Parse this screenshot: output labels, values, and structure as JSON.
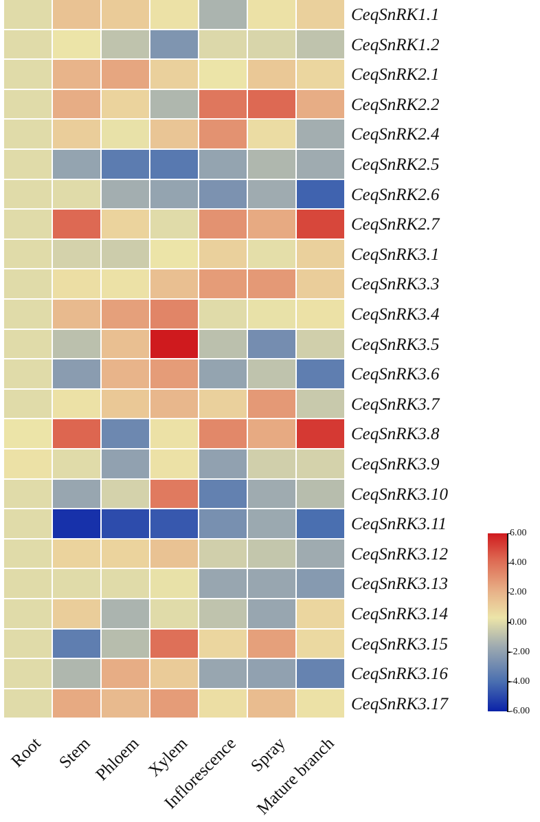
{
  "chart_data": {
    "type": "heatmap",
    "title": "",
    "xlabel": "",
    "ylabel": "",
    "columns": [
      "Root",
      "Stem",
      "Phloem",
      "Xylem",
      "Inflorescence",
      "Spray",
      "Mature branch"
    ],
    "rows": [
      "CeqSnRK1.1",
      "CeqSnRK1.2",
      "CeqSnRK2.1",
      "CeqSnRK2.2",
      "CeqSnRK2.4",
      "CeqSnRK2.5",
      "CeqSnRK2.6",
      "CeqSnRK2.7",
      "CeqSnRK3.1",
      "CeqSnRK3.3",
      "CeqSnRK3.4",
      "CeqSnRK3.5",
      "CeqSnRK3.6",
      "CeqSnRK3.7",
      "CeqSnRK3.8",
      "CeqSnRK3.9",
      "CeqSnRK3.10",
      "CeqSnRK3.11",
      "CeqSnRK3.12",
      "CeqSnRK3.13",
      "CeqSnRK3.14",
      "CeqSnRK3.15",
      "CeqSnRK3.16",
      "CeqSnRK3.17"
    ],
    "values": [
      [
        0,
        1.5,
        1.2,
        0.4,
        -1.3,
        0.4,
        1.0
      ],
      [
        0,
        0.3,
        -0.8,
        -2.5,
        -0.1,
        -0.2,
        -0.8
      ],
      [
        0,
        2.0,
        2.4,
        1.0,
        0.3,
        1.3,
        0.8
      ],
      [
        0,
        2.2,
        0.9,
        -1.2,
        3.8,
        4.2,
        2.2
      ],
      [
        0,
        1.1,
        0.2,
        1.4,
        3.0,
        0.6,
        -1.5
      ],
      [
        0,
        -1.9,
        -3.5,
        -3.6,
        -1.9,
        -1.2,
        -1.6
      ],
      [
        0,
        0.0,
        -1.5,
        -1.9,
        -2.6,
        -1.6,
        -4.3
      ],
      [
        0,
        4.2,
        0.9,
        0.0,
        3.0,
        2.3,
        5.0
      ],
      [
        0,
        -0.3,
        -0.5,
        0.3,
        1.0,
        0.1,
        1.0
      ],
      [
        0,
        0.5,
        0.4,
        1.6,
        2.7,
        2.8,
        1.1
      ],
      [
        0,
        1.8,
        2.6,
        3.4,
        0.0,
        0.2,
        0.4
      ],
      [
        0,
        -0.9,
        1.6,
        6.0,
        -0.9,
        -2.8,
        -0.4
      ],
      [
        0,
        -2.2,
        2.0,
        2.7,
        -1.9,
        -0.8,
        -3.4
      ],
      [
        0,
        0.4,
        1.3,
        1.9,
        1.0,
        2.8,
        -0.6
      ],
      [
        0.3,
        4.3,
        -3.0,
        0.4,
        3.3,
        2.3,
        5.3
      ],
      [
        0.4,
        0.0,
        -2.0,
        0.4,
        -2.0,
        -0.4,
        -0.3
      ],
      [
        0,
        -1.8,
        -0.3,
        3.7,
        -3.3,
        -1.6,
        -1.0
      ],
      [
        0,
        -5.6,
        -4.9,
        -4.6,
        -2.7,
        -1.7,
        -4.0
      ],
      [
        0,
        0.9,
        0.9,
        1.5,
        -0.4,
        -0.7,
        -1.6
      ],
      [
        0,
        0.0,
        0.0,
        0.2,
        -1.8,
        -1.8,
        -2.3
      ],
      [
        0,
        1.1,
        -1.3,
        0.0,
        -0.8,
        -1.8,
        0.8
      ],
      [
        0,
        -3.4,
        -1.0,
        4.0,
        0.8,
        2.6,
        0.7
      ],
      [
        0,
        -1.2,
        2.2,
        1.2,
        -1.8,
        -2.0,
        -3.2
      ],
      [
        0,
        2.3,
        1.8,
        2.7,
        0.5,
        1.7,
        0.4
      ]
    ],
    "colorbar": {
      "range": [
        -6,
        6
      ],
      "ticks": [
        "6.00",
        "4.00",
        "2.00",
        "0.00",
        "-2.00",
        "-4.00",
        "-6.00"
      ],
      "colors": {
        "min": "#0a22a8",
        "low": "#4a6fb0",
        "mid_low": "#9fabb0",
        "mid": "#ece4a8",
        "mid_high": "#e8b48a",
        "high": "#dd6650",
        "max": "#cf1a1e"
      }
    },
    "legend_position": "right-bottom",
    "grid": false
  }
}
